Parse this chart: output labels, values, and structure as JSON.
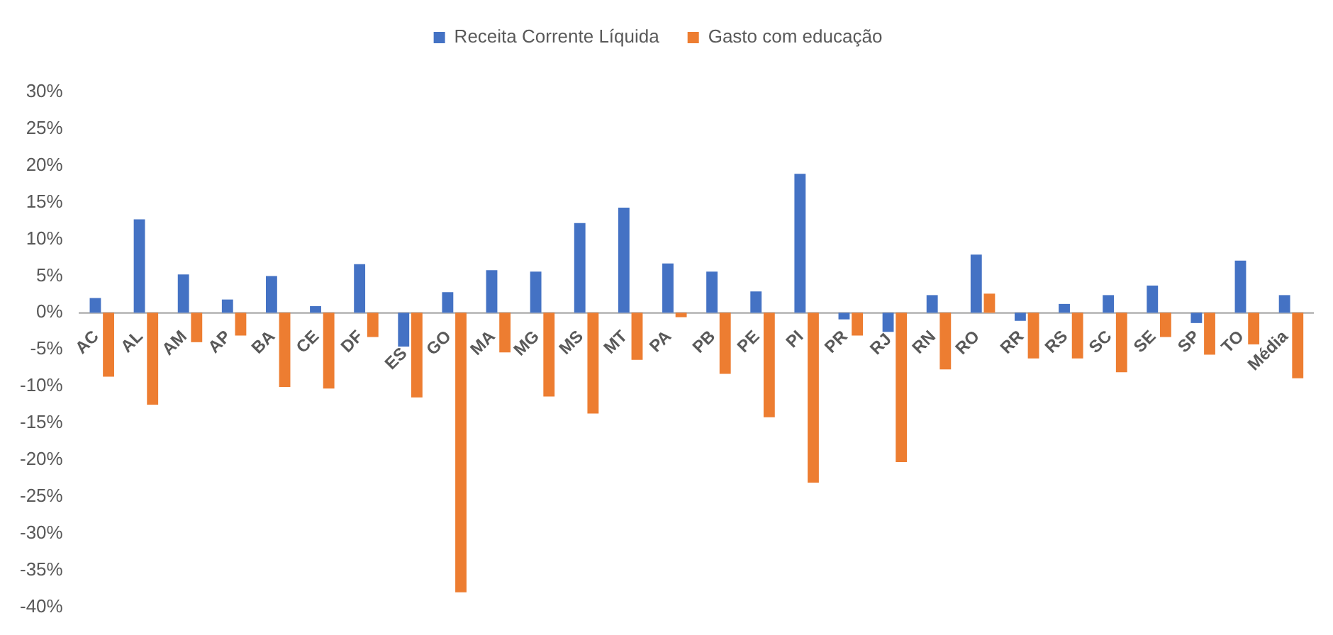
{
  "chart_data": {
    "type": "bar",
    "categories": [
      "AC",
      "AL",
      "AM",
      "AP",
      "BA",
      "CE",
      "DF",
      "ES",
      "GO",
      "MA",
      "MG",
      "MS",
      "MT",
      "PA",
      "PB",
      "PE",
      "PI",
      "PR",
      "RJ",
      "RN",
      "RO",
      "RR",
      "RS",
      "SC",
      "SE",
      "SP",
      "TO",
      "Média"
    ],
    "series": [
      {
        "name": "Receita Corrente Líquida",
        "color": "#4472c4",
        "values": [
          2.0,
          12.7,
          5.2,
          1.8,
          5.0,
          0.9,
          6.6,
          -4.6,
          2.8,
          5.8,
          5.6,
          12.2,
          14.3,
          6.7,
          5.6,
          2.9,
          18.9,
          -0.9,
          -2.6,
          2.4,
          7.9,
          -1.1,
          1.2,
          2.4,
          3.7,
          -1.4,
          7.1,
          2.4
        ]
      },
      {
        "name": "Gasto com educação",
        "color": "#ed7d31",
        "values": [
          -8.7,
          -12.5,
          -4.0,
          -3.1,
          -10.1,
          -10.3,
          -3.3,
          -11.5,
          -38.0,
          -5.4,
          -11.4,
          -13.7,
          -6.4,
          -0.6,
          -8.3,
          -14.2,
          -23.1,
          -3.1,
          -20.3,
          -7.7,
          2.6,
          -6.2,
          -6.2,
          -8.1,
          -3.3,
          -5.7,
          -4.3,
          -8.9
        ]
      }
    ],
    "ylim": [
      -40,
      30
    ],
    "yticks": [
      {
        "value": 30,
        "label": "30%"
      },
      {
        "value": 25,
        "label": "25%"
      },
      {
        "value": 20,
        "label": "20%"
      },
      {
        "value": 15,
        "label": "15%"
      },
      {
        "value": 10,
        "label": "10%"
      },
      {
        "value": 5,
        "label": "5%"
      },
      {
        "value": 0,
        "label": "0%"
      },
      {
        "value": -5,
        "label": "-5%"
      },
      {
        "value": -10,
        "label": "-10%"
      },
      {
        "value": -15,
        "label": "-15%"
      },
      {
        "value": -20,
        "label": "-20%"
      },
      {
        "value": -25,
        "label": "-25%"
      },
      {
        "value": -30,
        "label": "-30%"
      },
      {
        "value": -35,
        "label": "-35%"
      },
      {
        "value": -40,
        "label": "-40%"
      }
    ],
    "grid": false,
    "legend": "top"
  }
}
